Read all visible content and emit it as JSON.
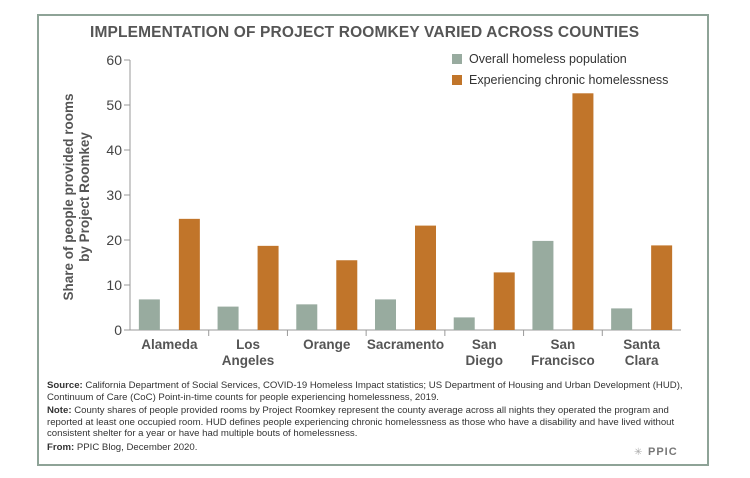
{
  "chart_data": {
    "type": "bar",
    "title": "IMPLEMENTATION OF PROJECT ROOMKEY VARIED ACROSS COUNTIES",
    "ylabel": "Share of people provided rooms by Project Roomkey",
    "ylabel_lines": [
      "Share of people provided rooms",
      "by Project Roomkey"
    ],
    "xlabel": "",
    "ylim": [
      0,
      60
    ],
    "yticks": [
      0,
      10,
      20,
      30,
      40,
      50,
      60
    ],
    "grid": false,
    "legend_position": "top-right",
    "categories": [
      [
        "Alameda"
      ],
      [
        "Los",
        "Angeles"
      ],
      [
        "Orange"
      ],
      [
        "Sacramento"
      ],
      [
        "San",
        "Diego"
      ],
      [
        "San",
        "Francisco"
      ],
      [
        "Santa",
        "Clara"
      ]
    ],
    "series": [
      {
        "name": "Overall homeless population",
        "color": "#98ab9f",
        "values": [
          6.8,
          5.2,
          5.7,
          6.8,
          2.8,
          19.8,
          4.8
        ]
      },
      {
        "name": "Experiencing chronic homelessness",
        "color": "#c1752a",
        "values": [
          24.7,
          18.7,
          15.5,
          23.2,
          12.8,
          52.6,
          18.8
        ]
      }
    ]
  },
  "footer": {
    "source_label": "Source:",
    "source_text": "California Department of Social Services, COVID-19 Homeless Impact statistics; US Department of Housing and Urban Development (HUD), Continuum of Care (CoC) Point-in-time counts for people experiencing homelessness, 2019.",
    "note_label": "Note:",
    "note_text": "County shares of people provided rooms by Project Roomkey represent the county average across all nights they operated the program and reported at least one occupied room. HUD defines people experiencing chronic homelessness as those who have a disability and have lived without consistent shelter for a year or have had multiple bouts of homelessness.",
    "from_label": "From:",
    "from_text": "PPIC Blog, December 2020.",
    "logo_text": "PPIC"
  }
}
